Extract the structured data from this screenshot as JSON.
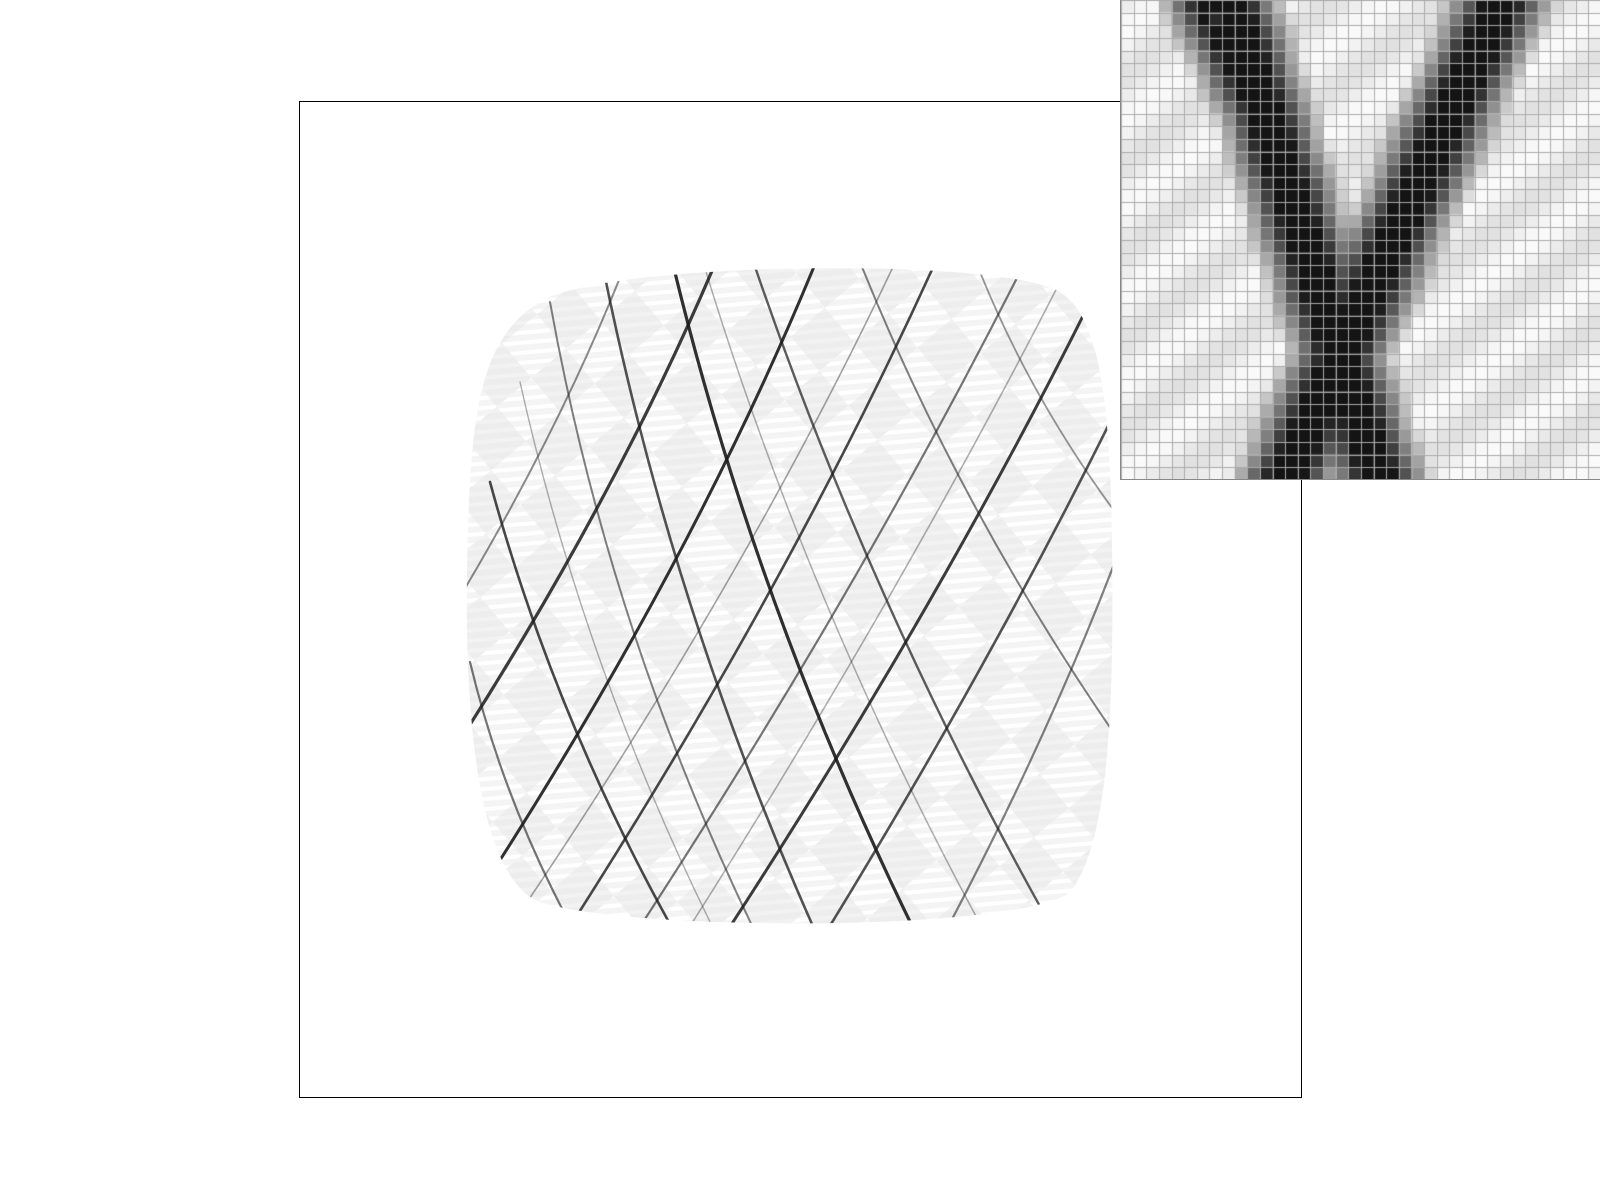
{
  "viewport": {
    "background": "#ffffff",
    "frame_color": "#000000",
    "object": "textured-cushion",
    "texture": "diagonal-plaid",
    "line_color": "#1a1a1a",
    "fill_light": "#f2f2f2",
    "fill_mid": "#e2e2e2"
  },
  "zoom_inset": {
    "icon": "pixel-magnifier",
    "pattern": "x-shaped-crossing-lines",
    "grid_color": "#aaaaaa",
    "grid_cells": 38,
    "darkest": "#141414",
    "lightest": "#ffffff"
  }
}
